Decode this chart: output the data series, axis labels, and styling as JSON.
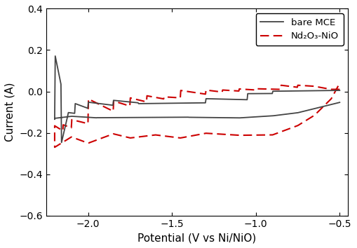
{
  "xlabel": "Potential (V vs Ni/NiO)",
  "ylabel": "Current (A)",
  "xlim": [
    -2.25,
    -0.45
  ],
  "ylim": [
    -0.6,
    0.4
  ],
  "xticks": [
    -2.0,
    -1.5,
    -1.0,
    -0.5
  ],
  "yticks": [
    -0.6,
    -0.4,
    -0.2,
    0.0,
    0.2,
    0.4
  ],
  "legend": [
    "bare MCE",
    "Nd₂O₃-NiO"
  ],
  "bare_mce_color": "#444444",
  "nd2o3_color": "#cc0000",
  "background_color": "#ffffff",
  "bare_mce_lw": 1.3,
  "nd2o3_lw": 1.5
}
